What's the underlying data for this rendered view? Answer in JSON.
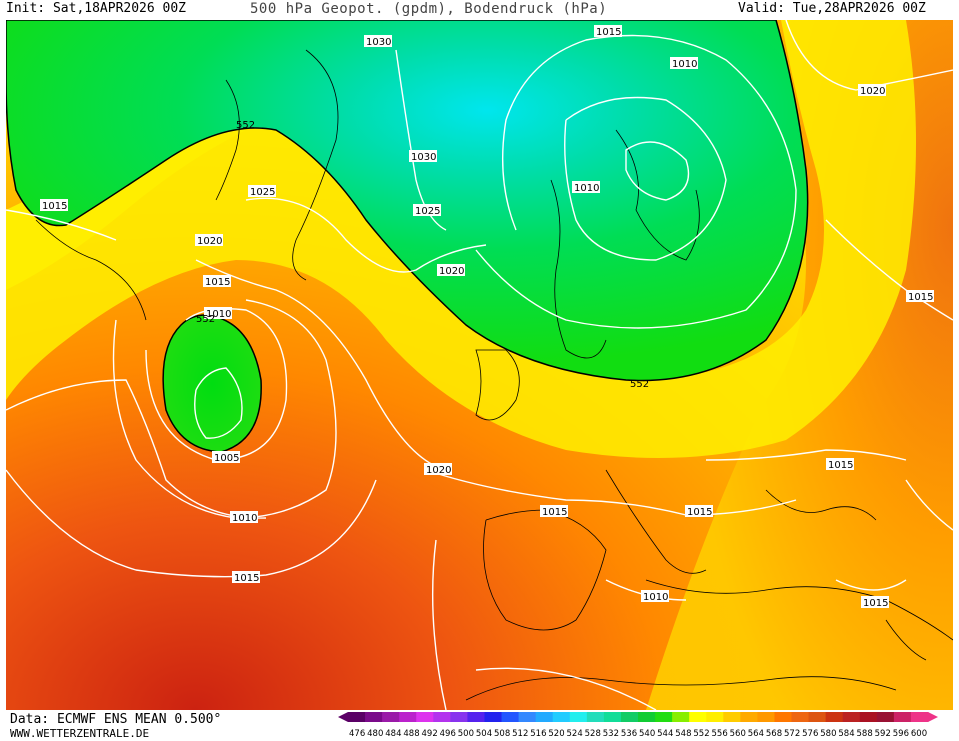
{
  "header": {
    "init": "Init: Sat,18APR2026 00Z",
    "title": "500 hPa Geopot. (gpdm), Bodendruck (hPa)",
    "valid": "Valid: Tue,28APR2026 00Z"
  },
  "footer": {
    "data": "Data: ECMWF ENS MEAN 0.500°",
    "website": "WWW.WETTERZENTRALE.DE"
  },
  "colorbar": {
    "ticks": [
      "476",
      "480",
      "484",
      "488",
      "492",
      "496",
      "500",
      "504",
      "508",
      "512",
      "516",
      "520",
      "524",
      "528",
      "532",
      "536",
      "540",
      "544",
      "548",
      "552",
      "556",
      "560",
      "564",
      "568",
      "572",
      "576",
      "580",
      "584",
      "588",
      "592",
      "596",
      "600"
    ],
    "colors": [
      "#5a0066",
      "#7a0a8a",
      "#9a1aa8",
      "#bb22cc",
      "#dd33ee",
      "#b333ee",
      "#8833ee",
      "#5522ee",
      "#2222ee",
      "#2255ff",
      "#3388ff",
      "#22aaff",
      "#22ccff",
      "#22eeee",
      "#22ddbb",
      "#11dd99",
      "#11cc66",
      "#11cc33",
      "#22dd11",
      "#88ee00",
      "#ffff00",
      "#ffee00",
      "#ffcc00",
      "#ffaa00",
      "#ff9900",
      "#ff7700",
      "#ee6611",
      "#dd5511",
      "#cc3311",
      "#bb2222",
      "#aa1122",
      "#991133",
      "#cc2266",
      "#ee3388"
    ]
  },
  "map": {
    "highlight_contour": "552",
    "isobar_labels": [
      "1030",
      "1015",
      "1010",
      "1020",
      "1015",
      "552",
      "1030",
      "1025",
      "1025",
      "1010",
      "1015",
      "1020",
      "1020",
      "1015",
      "1010",
      "552",
      "1005",
      "1010",
      "1015",
      "1020",
      "1015",
      "1015",
      "1015",
      "1010",
      "1015",
      "552"
    ],
    "colors": {
      "trough_green": "#00dd11",
      "deep_trough": "#00e8e8",
      "ridge_yellow": "#ffee00",
      "orange": "#ff9900",
      "red": "#dd4411"
    }
  }
}
